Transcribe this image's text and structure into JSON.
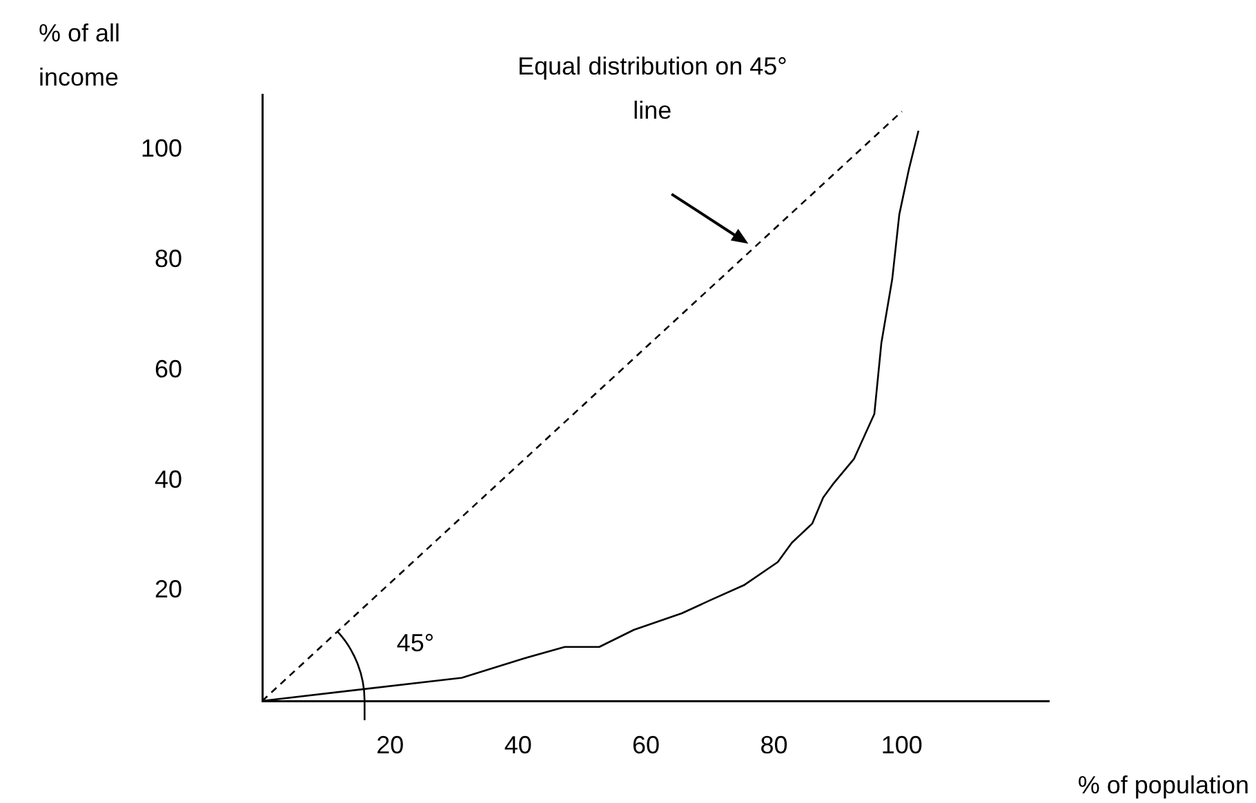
{
  "chart_data": {
    "type": "line",
    "xlabel": "% of population",
    "ylabel": "% of all income",
    "xlim": [
      0,
      123
    ],
    "ylim": [
      0,
      110
    ],
    "xticks": [
      20,
      40,
      60,
      80,
      100
    ],
    "yticks": [
      20,
      40,
      60,
      80,
      100
    ],
    "grid": false,
    "legend": false,
    "marker": "none",
    "annotations": [
      "Equal distribution on 45° line",
      "45°"
    ],
    "series": [
      {
        "color": "#000000",
        "line_style": "dashed",
        "x": [
          0,
          100
        ],
        "values": [
          0,
          107
        ]
      },
      {
        "color": "#000000",
        "line_style": "solid",
        "x": [
          0,
          31.2,
          40.9,
          47.3,
          52.7,
          58.1,
          65.6,
          69.9,
          75.3,
          80.6,
          82.8,
          86,
          87.7,
          89.2,
          92.5,
          95.7,
          96.8,
          98.5,
          99.6,
          101.1,
          102.6
        ],
        "values": [
          0,
          4.2,
          7.7,
          9.8,
          9.8,
          12.9,
          15.9,
          18.2,
          21,
          25.2,
          28.7,
          32.2,
          36.9,
          39.3,
          43.9,
          52.1,
          65,
          76.6,
          88.3,
          96.5,
          103.5
        ]
      }
    ]
  }
}
